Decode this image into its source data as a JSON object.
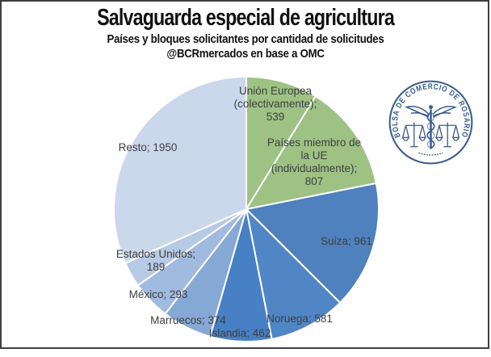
{
  "header": {
    "title": "Salvaguarda especial de agricultura",
    "subtitle": "Países y bloques solicitantes por cantidad de solicitudes",
    "source": "@BCRmercados en base a OMC"
  },
  "logo": {
    "ring_text": "BOLSA DE COMERCIO DE ROSARIO",
    "color": "#3b5c8f"
  },
  "chart_data": {
    "type": "pie",
    "title": "Salvaguarda especial de agricultura",
    "subtitle": "Países y bloques solicitantes por cantidad de solicitudes",
    "annotation": "@BCRmercados en base a OMC",
    "start_angle_deg": 0,
    "direction": "clockwise",
    "total": 6156,
    "slice_border_color": "#ffffff",
    "label_color": "#3f3f3f",
    "slices": [
      {
        "id": "union-europea-colectivamente",
        "name": "Unión Europea (colectivamente)",
        "value": 539,
        "color": "#9dc284",
        "label_lines": [
          "Unión Europea",
          "(colectivamente);",
          "539"
        ]
      },
      {
        "id": "paises-miembro-ue-individualmente",
        "name": "Países miembro de la UE (individualmente)",
        "value": 807,
        "color": "#9dc284",
        "label_lines": [
          "Países miembro de",
          "la UE",
          "(individualmente);",
          "807"
        ]
      },
      {
        "id": "suiza",
        "name": "Suiza",
        "value": 961,
        "color": "#4e81bd",
        "label_lines": [
          "Suiza; 961"
        ]
      },
      {
        "id": "noruega",
        "name": "Noruega",
        "value": 581,
        "color": "#5086c5",
        "label_lines": [
          "Noruega; 581"
        ]
      },
      {
        "id": "islandia",
        "name": "Islandia",
        "value": 462,
        "color": "#4780c4",
        "label_lines": [
          "Islandia; 462"
        ]
      },
      {
        "id": "marruecos",
        "name": "Marruecos",
        "value": 374,
        "color": "#86a8d5",
        "label_lines": [
          "Marruecos; 374"
        ]
      },
      {
        "id": "mexico",
        "name": "México",
        "value": 293,
        "color": "#a1badf",
        "label_lines": [
          "México; 293"
        ]
      },
      {
        "id": "estados-unidos",
        "name": "Estados Unidos",
        "value": 189,
        "color": "#b6c9e5",
        "label_lines": [
          "Estados Unidos;",
          "189"
        ]
      },
      {
        "id": "resto",
        "name": "Resto",
        "value": 1950,
        "color": "#cbd7eb",
        "label_lines": [
          "Resto; 1950"
        ]
      }
    ]
  }
}
